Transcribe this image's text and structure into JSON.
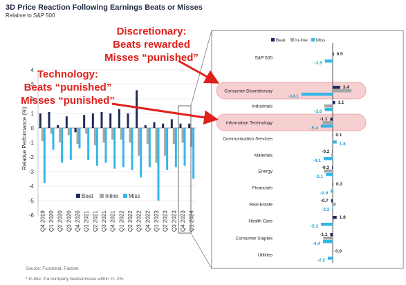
{
  "title": "3D Price Reaction Following Earnings Beats or Misses",
  "subtitle": "Relative to S&P 500",
  "callouts": {
    "discretionary": [
      "Discretionary:",
      "Beats rewarded",
      "Misses “punished”"
    ],
    "technology": [
      "Technology:",
      "Beats “punished”",
      "Misses “punished”"
    ]
  },
  "footer": {
    "source": "Source: Fundstrat, Factset",
    "note": "* In-line: if a company beats/misses within +/- 2%"
  },
  "colors": {
    "beat": "#1f2a5c",
    "inline": "#a6a6a6",
    "miss": "#35b6e6",
    "highlight": "#f6cfd0",
    "accent": "#e0201c"
  },
  "chart_data": [
    {
      "type": "bar",
      "ylabel": "Relative Performance (%)",
      "ylim": [
        -6,
        4
      ],
      "yticks": [
        "-6",
        "-5",
        "-4",
        "-3",
        "-2",
        "-1",
        "0",
        "1",
        "2",
        "3",
        "4"
      ],
      "categories": [
        "Q4 2019",
        "Q1 2020",
        "Q2 2020",
        "Q3 2020",
        "Q4 2020",
        "Q1 2021",
        "Q2 2021",
        "Q3 2021",
        "Q4 2021",
        "Q1 2022",
        "Q2 2022",
        "Q3 2022",
        "Q4 2022",
        "Q1 2023",
        "Q2 2023",
        "Q3 2023",
        "Q4 2023",
        "Q1 2024"
      ],
      "series": [
        {
          "name": "Beat",
          "values": [
            1.0,
            1.1,
            0.2,
            0.8,
            -0.3,
            0.9,
            1.0,
            1.1,
            1.0,
            1.3,
            1.0,
            2.6,
            0.2,
            0.4,
            0.3,
            0.6,
            0.3,
            0.3
          ]
        },
        {
          "name": "Inline",
          "values": [
            -0.9,
            -0.4,
            -1.0,
            -0.5,
            -1.1,
            -0.4,
            -1.2,
            -1.0,
            -0.8,
            -0.8,
            -1.0,
            -1.9,
            -1.1,
            -2.4,
            -1.9,
            -1.1,
            -1.0,
            -1.3
          ]
        },
        {
          "name": "Miss",
          "values": [
            -3.8,
            -1.5,
            -2.4,
            -2.2,
            -1.4,
            -2.2,
            -2.6,
            -2.4,
            -2.8,
            -2.7,
            -2.9,
            -3.4,
            -2.7,
            -5.0,
            -2.9,
            -2.7,
            -2.6,
            -3.5
          ]
        }
      ],
      "legend": "bottom"
    },
    {
      "type": "bar",
      "orientation": "horizontal",
      "legend": [
        "Beat",
        "In-line",
        "Miss"
      ],
      "categories": [
        "S&P 500",
        "Consumer Discretionary",
        "Industrials",
        "Information Technology",
        "Communication Services",
        "Materials",
        "Energy",
        "Financials",
        "Real Estate",
        "Health Care",
        "Consumer Staples",
        "Utilities"
      ],
      "highlighted": [
        "Consumer Discretionary",
        "Information Technology"
      ],
      "series": [
        {
          "name": "Beat",
          "values": [
            0.5,
            3.4,
            1.1,
            -1.1,
            0.1,
            -0.2,
            -0.3,
            0.3,
            -0.7,
            1.8,
            -1.1,
            0.0
          ]
        },
        {
          "name": "In-line",
          "values": [
            0.3,
            8.5,
            -3.8,
            -4.5,
            0.3,
            -0.6,
            -4.0,
            0.3,
            1.4,
            0.5,
            -4.3,
            0.1
          ]
        },
        {
          "name": "Miss",
          "values": [
            -3.5,
            -14.1,
            -3.6,
            -5.4,
            1.8,
            -4.1,
            -3.1,
            -0.9,
            -0.2,
            -5.3,
            -4.4,
            -2.2
          ]
        }
      ],
      "labels": {
        "beat": [
          "0.5",
          "3.4",
          "1.1",
          "-1.1",
          "0.1",
          "-0.2",
          "-0.3",
          "0.3",
          "-0.7",
          "1.8",
          "-1.1",
          "0.0"
        ],
        "miss": [
          "-3.5",
          "-14.1",
          "-3.6",
          "-5.4",
          "1.8",
          "-4.1",
          "-3.1",
          "-0.9",
          "-0.2",
          "-5.3",
          "-4.4",
          "-2.2"
        ]
      },
      "xlim": [
        -16,
        9
      ]
    }
  ]
}
